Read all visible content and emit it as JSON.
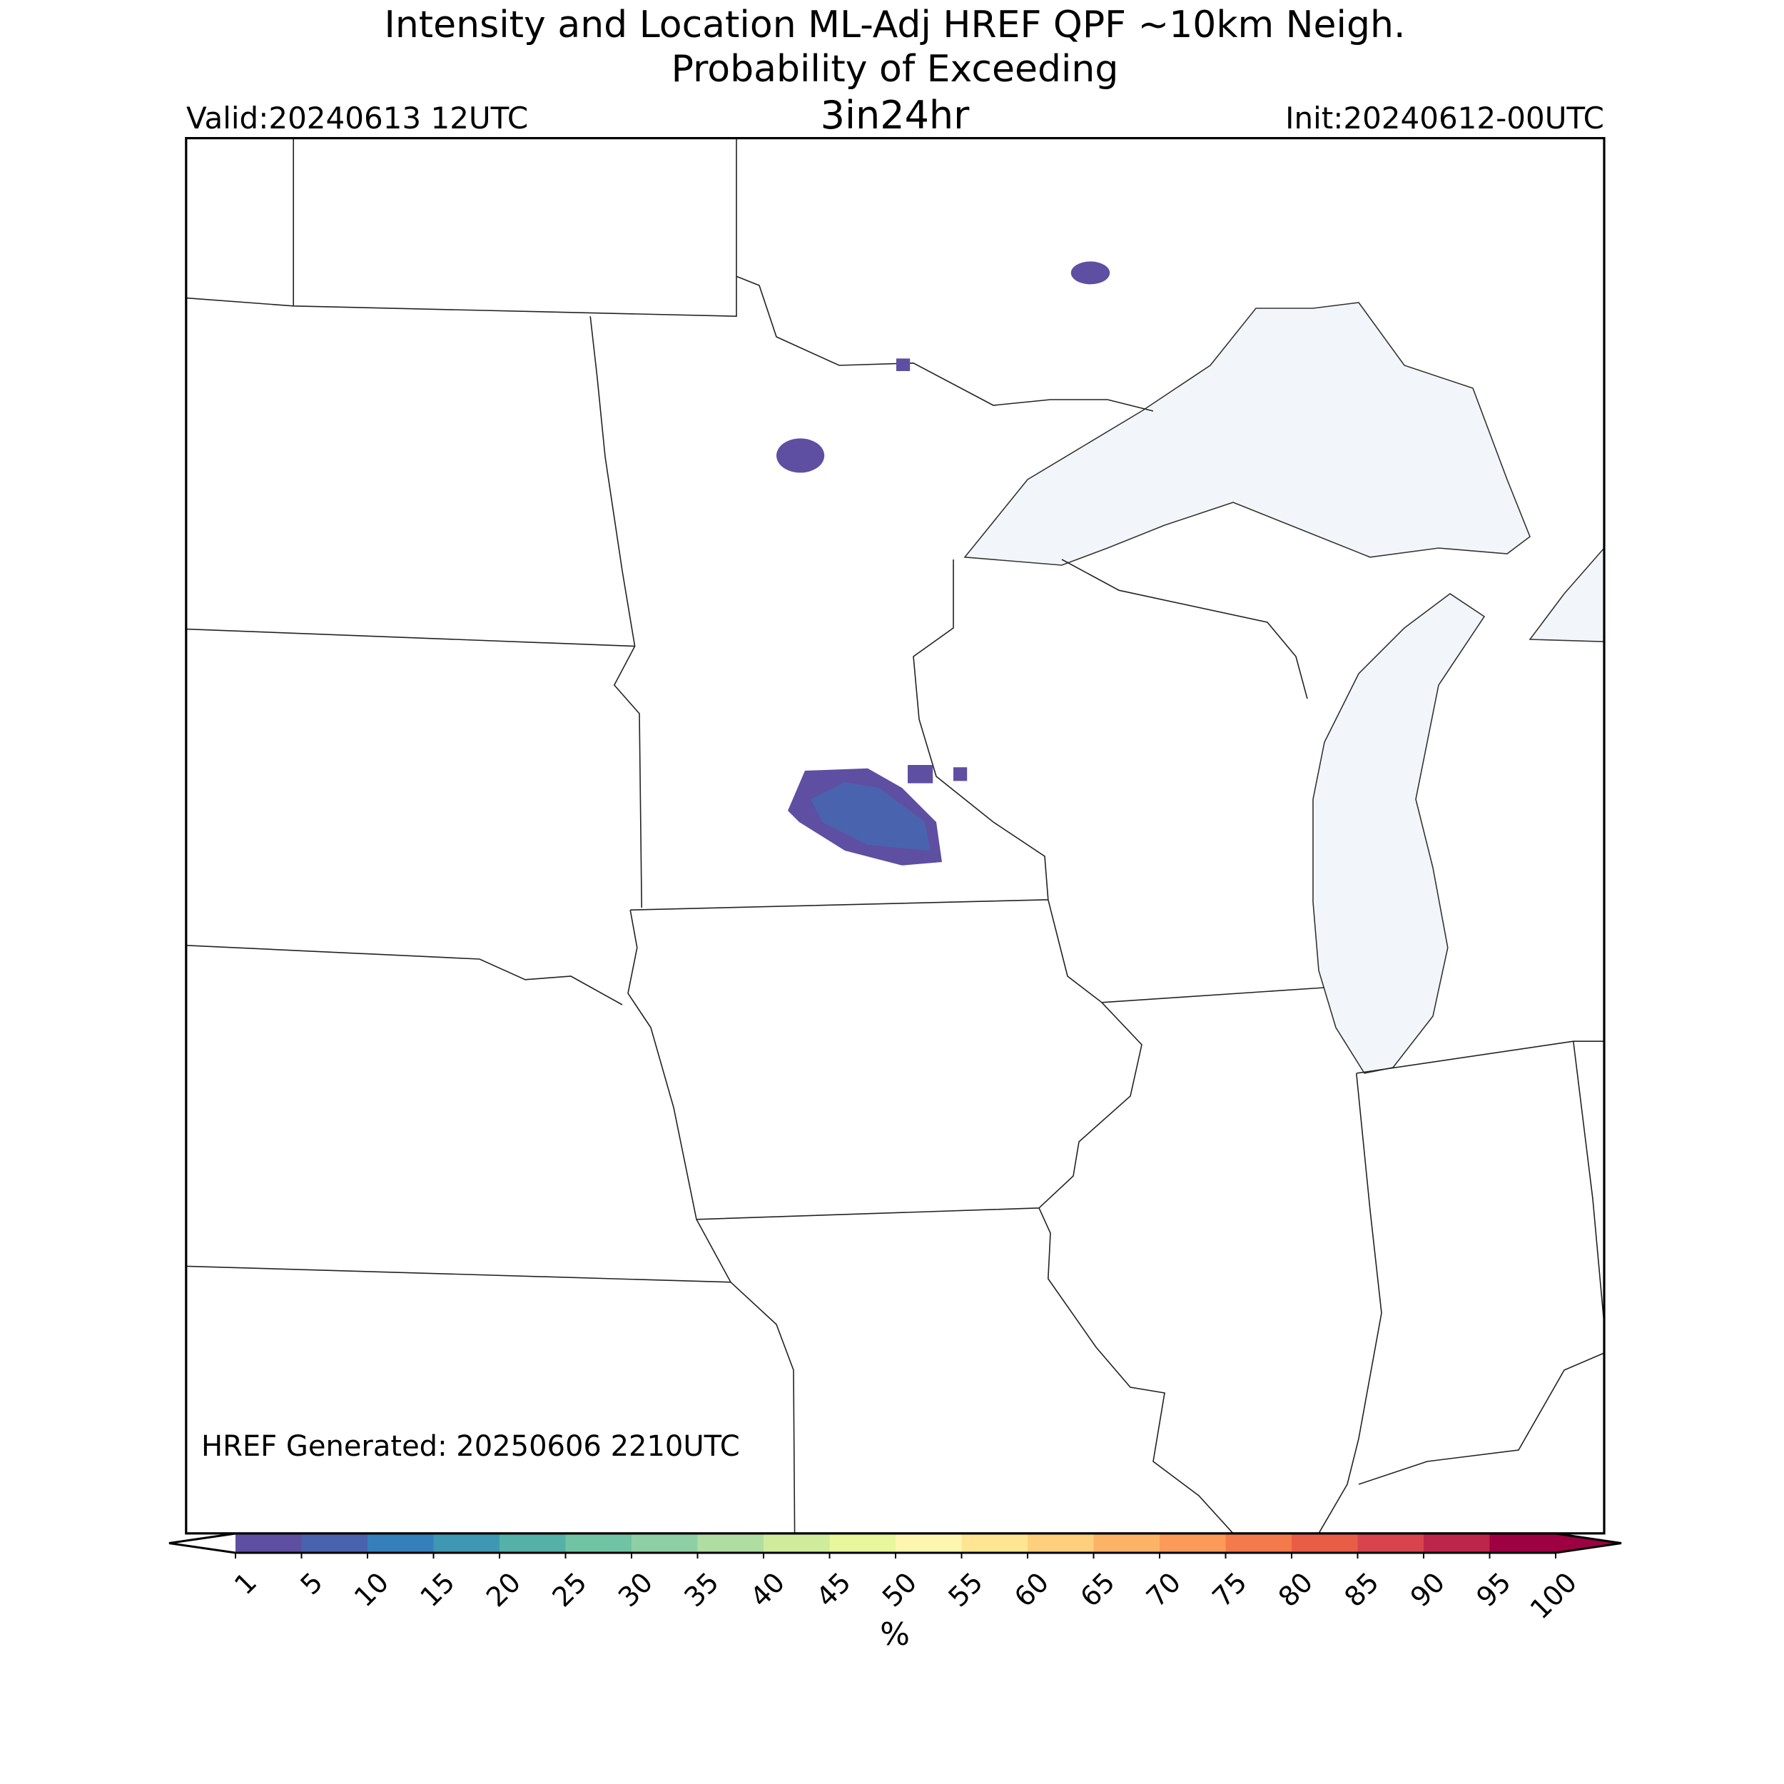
{
  "header": {
    "title_line1": "Intensity and Location ML-Adj HREF QPF ~10km Neigh.",
    "title_line2": "Probability of Exceeding",
    "valid": "Valid:20240613 12UTC",
    "subtitle": "3in24hr",
    "init": "Init:20240612-00UTC"
  },
  "map": {
    "generated": "HREF Generated: 20250606 2210UTC"
  },
  "colorbar": {
    "ticks": [
      1,
      5,
      10,
      15,
      20,
      25,
      30,
      35,
      40,
      45,
      50,
      55,
      60,
      65,
      70,
      75,
      80,
      85,
      90,
      95,
      100
    ],
    "colors": [
      "#5e4fa2",
      "#4a63ae",
      "#3580bb",
      "#3e98b4",
      "#55b0a8",
      "#70c4a4",
      "#8ed0a4",
      "#b0dea2",
      "#cfec9d",
      "#e8f69c",
      "#fdf6b0",
      "#fee593",
      "#fecf7c",
      "#fdb366",
      "#fb9a59",
      "#f57a4b",
      "#e95d46",
      "#d8434d",
      "#be254a",
      "#9e0142"
    ],
    "under_color": "#ffffff",
    "over_color": "#9e0142",
    "label": "%"
  }
}
